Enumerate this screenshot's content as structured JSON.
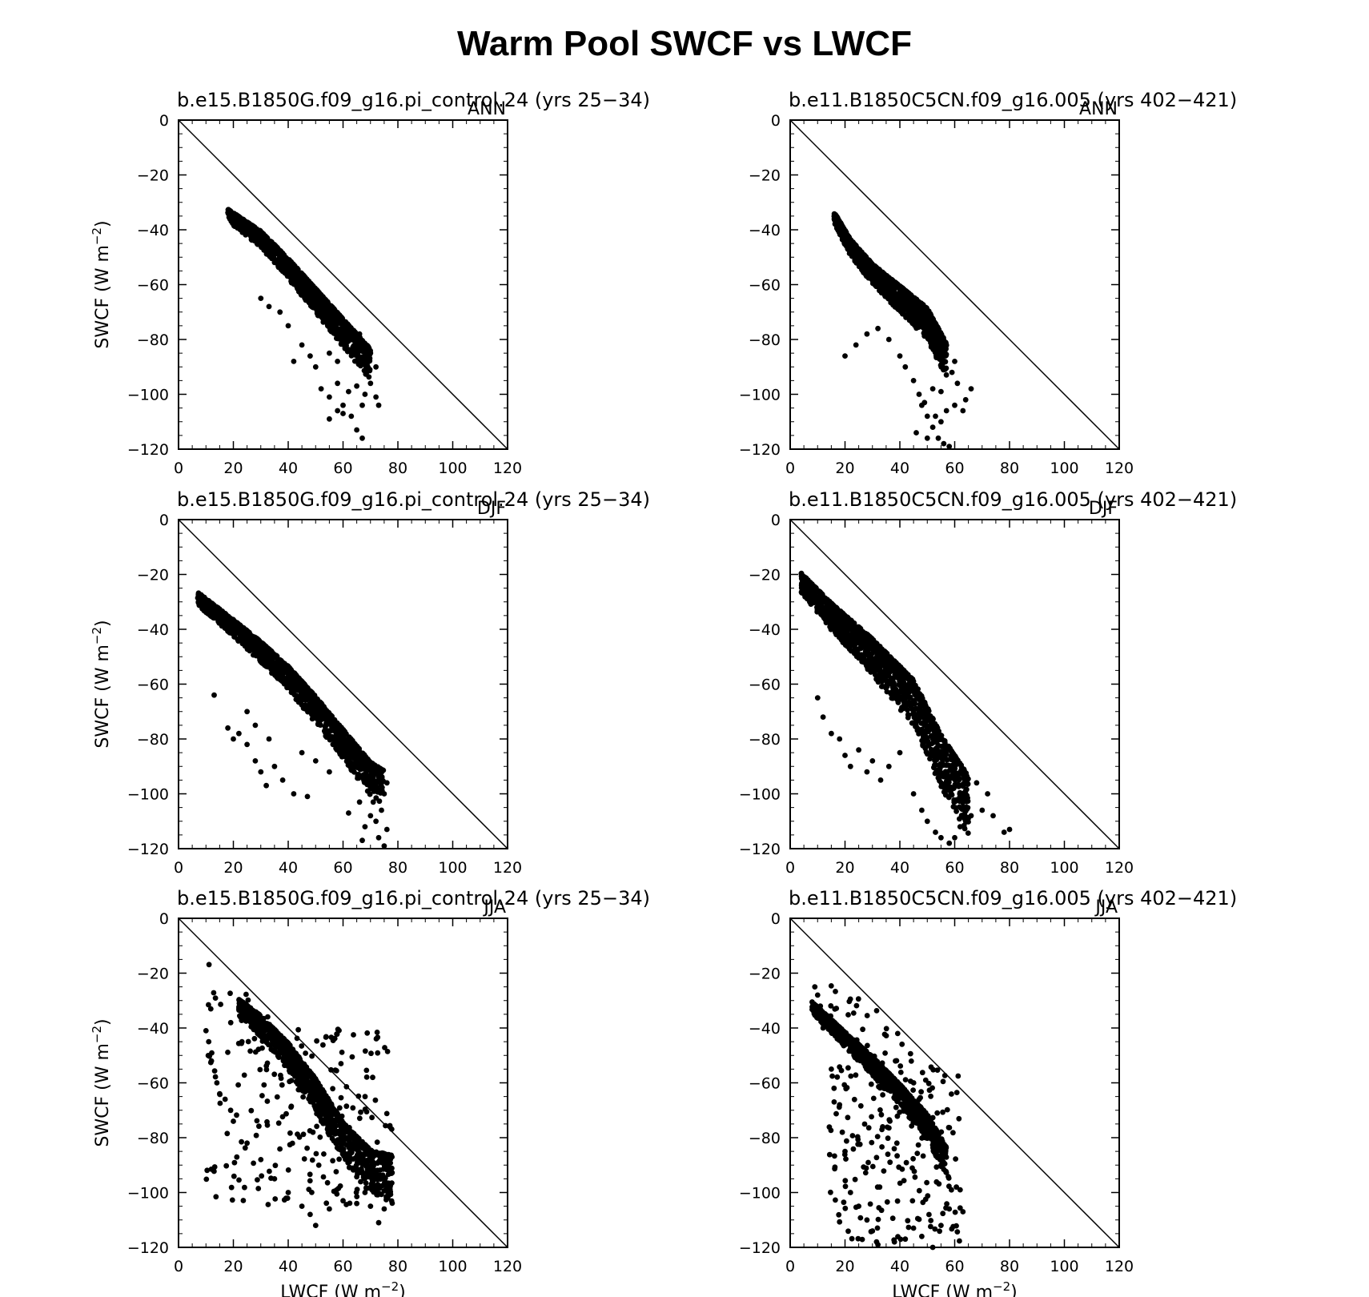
{
  "figure": {
    "title": "Warm Pool SWCF vs LWCF"
  },
  "axis_text": {
    "ylabel_main": "SWCF (W m",
    "xlabel_main": "LWCF (W m",
    "unit_exponent": "−2"
  },
  "chart_data": [
    {
      "type": "scatter",
      "case": "b.e15.B1850G.f09_g16.pi_control.24 (yrs 25−34)",
      "season": "ANN",
      "xlim": [
        0,
        120
      ],
      "ylim": [
        -120,
        0
      ],
      "xticks": [
        0,
        20,
        40,
        60,
        80,
        100,
        120
      ],
      "yticks": [
        0,
        -20,
        -40,
        -60,
        -80,
        -100,
        -120
      ],
      "xlabel": "",
      "ylabel": "SWCF (W m⁻²)",
      "reference_line": "y = -x",
      "cloud": {
        "trend": [
          [
            18,
            -34
          ],
          [
            30,
            -42
          ],
          [
            40,
            -52
          ],
          [
            50,
            -63
          ],
          [
            60,
            -74
          ],
          [
            70,
            -85
          ]
        ],
        "spread_lower": 8,
        "spread_upper": 1.5,
        "n": 1200
      },
      "points": [
        [
          52,
          -98
        ],
        [
          55,
          -101
        ],
        [
          58,
          -96
        ],
        [
          60,
          -104
        ],
        [
          62,
          -99
        ],
        [
          65,
          -97
        ],
        [
          67,
          -104
        ],
        [
          68,
          -100
        ],
        [
          70,
          -96
        ],
        [
          72,
          -101
        ],
        [
          73,
          -104
        ],
        [
          55,
          -109
        ],
        [
          58,
          -106
        ],
        [
          60,
          -107
        ],
        [
          63,
          -108
        ],
        [
          65,
          -113
        ],
        [
          67,
          -116
        ],
        [
          30,
          -65
        ],
        [
          33,
          -68
        ],
        [
          37,
          -70
        ],
        [
          40,
          -75
        ],
        [
          45,
          -82
        ],
        [
          42,
          -88
        ],
        [
          48,
          -86
        ],
        [
          50,
          -90
        ],
        [
          55,
          -85
        ],
        [
          58,
          -88
        ],
        [
          62,
          -80
        ],
        [
          66,
          -78
        ],
        [
          70,
          -85
        ],
        [
          72,
          -90
        ]
      ]
    },
    {
      "type": "scatter",
      "case": "b.e11.B1850C5CN.f09_g16.005 (yrs 402−421)",
      "season": "ANN",
      "xlim": [
        0,
        120
      ],
      "ylim": [
        -120,
        0
      ],
      "xticks": [
        0,
        20,
        40,
        60,
        80,
        100,
        120
      ],
      "yticks": [
        0,
        -20,
        -40,
        -60,
        -80,
        -100,
        -120
      ],
      "xlabel": "",
      "ylabel": "",
      "reference_line": "y = -x",
      "cloud": {
        "trend": [
          [
            16,
            -35
          ],
          [
            22,
            -45
          ],
          [
            30,
            -54
          ],
          [
            40,
            -62
          ],
          [
            50,
            -70
          ],
          [
            57,
            -83
          ]
        ],
        "spread_lower": 9,
        "spread_upper": 1.5,
        "n": 1200
      },
      "points": [
        [
          20,
          -86
        ],
        [
          24,
          -82
        ],
        [
          28,
          -78
        ],
        [
          32,
          -76
        ],
        [
          36,
          -80
        ],
        [
          40,
          -86
        ],
        [
          42,
          -90
        ],
        [
          45,
          -95
        ],
        [
          47,
          -100
        ],
        [
          48,
          -104
        ],
        [
          50,
          -108
        ],
        [
          52,
          -112
        ],
        [
          54,
          -116
        ],
        [
          56,
          -118
        ],
        [
          58,
          -119
        ],
        [
          55,
          -110
        ],
        [
          57,
          -106
        ],
        [
          60,
          -104
        ],
        [
          63,
          -106
        ],
        [
          66,
          -98
        ],
        [
          64,
          -102
        ],
        [
          61,
          -96
        ],
        [
          59,
          -92
        ],
        [
          52,
          -98
        ],
        [
          46,
          -114
        ],
        [
          50,
          -116
        ],
        [
          53,
          -108
        ],
        [
          49,
          -103
        ],
        [
          55,
          -99
        ],
        [
          60,
          -88
        ]
      ]
    },
    {
      "type": "scatter",
      "case": "b.e15.B1850G.f09_g16.pi_control.24 (yrs 25−34)",
      "season": "DJF",
      "xlim": [
        0,
        120
      ],
      "ylim": [
        -120,
        0
      ],
      "xticks": [
        0,
        20,
        40,
        60,
        80,
        100,
        120
      ],
      "yticks": [
        0,
        -20,
        -40,
        -60,
        -80,
        -100,
        -120
      ],
      "xlabel": "",
      "ylabel": "SWCF (W m⁻²)",
      "reference_line": "y = -x",
      "cloud": {
        "trend": [
          [
            7,
            -28
          ],
          [
            20,
            -38
          ],
          [
            30,
            -46
          ],
          [
            40,
            -55
          ],
          [
            50,
            -66
          ],
          [
            60,
            -78
          ],
          [
            70,
            -90
          ],
          [
            75,
            -93
          ]
        ],
        "spread_lower": 9,
        "spread_upper": 1.5,
        "n": 1300
      },
      "points": [
        [
          13,
          -64
        ],
        [
          18,
          -76
        ],
        [
          20,
          -80
        ],
        [
          22,
          -78
        ],
        [
          25,
          -82
        ],
        [
          28,
          -88
        ],
        [
          30,
          -92
        ],
        [
          32,
          -97
        ],
        [
          35,
          -90
        ],
        [
          38,
          -95
        ],
        [
          42,
          -100
        ],
        [
          47,
          -101
        ],
        [
          62,
          -107
        ],
        [
          66,
          -103
        ],
        [
          68,
          -112
        ],
        [
          70,
          -108
        ],
        [
          72,
          -110
        ],
        [
          74,
          -106
        ],
        [
          73,
          -116
        ],
        [
          75,
          -119
        ],
        [
          76,
          -113
        ],
        [
          67,
          -117
        ],
        [
          71,
          -103
        ],
        [
          75,
          -100
        ],
        [
          76,
          -96
        ],
        [
          25,
          -70
        ],
        [
          28,
          -75
        ],
        [
          33,
          -80
        ],
        [
          45,
          -85
        ],
        [
          50,
          -88
        ],
        [
          55,
          -92
        ]
      ]
    },
    {
      "type": "scatter",
      "case": "b.e11.B1850C5CN.f09_g16.005 (yrs 402−421)",
      "season": "DJF",
      "xlim": [
        0,
        120
      ],
      "ylim": [
        -120,
        0
      ],
      "xticks": [
        0,
        20,
        40,
        60,
        80,
        100,
        120
      ],
      "yticks": [
        0,
        -20,
        -40,
        -60,
        -80,
        -100,
        -120
      ],
      "xlabel": "",
      "ylabel": "",
      "reference_line": "y = -x",
      "cloud": {
        "trend": [
          [
            4,
            -21
          ],
          [
            15,
            -32
          ],
          [
            30,
            -45
          ],
          [
            45,
            -60
          ],
          [
            55,
            -80
          ],
          [
            65,
            -95
          ]
        ],
        "spread_lower": 16,
        "spread_upper": 1.5,
        "n": 1400
      },
      "points": [
        [
          10,
          -65
        ],
        [
          12,
          -72
        ],
        [
          15,
          -78
        ],
        [
          18,
          -80
        ],
        [
          20,
          -86
        ],
        [
          22,
          -90
        ],
        [
          25,
          -84
        ],
        [
          28,
          -92
        ],
        [
          30,
          -88
        ],
        [
          33,
          -95
        ],
        [
          36,
          -90
        ],
        [
          40,
          -85
        ],
        [
          45,
          -100
        ],
        [
          48,
          -106
        ],
        [
          50,
          -110
        ],
        [
          53,
          -114
        ],
        [
          55,
          -116
        ],
        [
          58,
          -118
        ],
        [
          60,
          -116
        ],
        [
          62,
          -112
        ],
        [
          66,
          -108
        ],
        [
          70,
          -106
        ],
        [
          74,
          -108
        ],
        [
          78,
          -114
        ],
        [
          80,
          -113
        ],
        [
          72,
          -100
        ],
        [
          68,
          -96
        ]
      ]
    },
    {
      "type": "scatter",
      "case": "b.e15.B1850G.f09_g16.pi_control.24 (yrs 25−34)",
      "season": "JJA",
      "xlim": [
        0,
        120
      ],
      "ylim": [
        -120,
        0
      ],
      "xticks": [
        0,
        20,
        40,
        60,
        80,
        100,
        120
      ],
      "yticks": [
        0,
        -20,
        -40,
        -60,
        -80,
        -100,
        -120
      ],
      "xlabel": "LWCF (W m⁻²)",
      "ylabel": "SWCF (W m⁻²)",
      "reference_line": "y = -x",
      "cloud": {
        "trend": [
          [
            22,
            -31
          ],
          [
            30,
            -37
          ],
          [
            40,
            -47
          ],
          [
            50,
            -60
          ],
          [
            60,
            -76
          ],
          [
            70,
            -86
          ],
          [
            78,
            -88
          ]
        ],
        "spread_lower": 13,
        "spread_upper": 1.5,
        "n": 1100
      },
      "scatter_box": {
        "x": [
          10,
          78
        ],
        "y": [
          -40,
          -105
        ],
        "n": 220
      },
      "points": [
        [
          10,
          -41
        ],
        [
          11,
          -45
        ],
        [
          12,
          -52
        ],
        [
          14,
          -60
        ],
        [
          15,
          -64
        ],
        [
          17,
          -66
        ],
        [
          19,
          -70
        ],
        [
          20,
          -74
        ],
        [
          25,
          -82
        ],
        [
          30,
          -88
        ],
        [
          35,
          -95
        ],
        [
          40,
          -100
        ],
        [
          45,
          -105
        ],
        [
          48,
          -108
        ],
        [
          50,
          -112
        ],
        [
          55,
          -106
        ],
        [
          60,
          -103
        ],
        [
          65,
          -104
        ],
        [
          68,
          -100
        ],
        [
          70,
          -105
        ],
        [
          73,
          -111
        ],
        [
          75,
          -106
        ]
      ]
    },
    {
      "type": "scatter",
      "case": "b.e11.B1850C5CN.f09_g16.005 (yrs 402−421)",
      "season": "JJA",
      "xlim": [
        0,
        120
      ],
      "ylim": [
        -120,
        0
      ],
      "xticks": [
        0,
        20,
        40,
        60,
        80,
        100,
        120
      ],
      "yticks": [
        0,
        -20,
        -40,
        -60,
        -80,
        -100,
        -120
      ],
      "xlabel": "LWCF (W m⁻²)",
      "ylabel": "",
      "reference_line": "y = -x",
      "cloud": {
        "trend": [
          [
            8,
            -32
          ],
          [
            20,
            -43
          ],
          [
            30,
            -52
          ],
          [
            40,
            -62
          ],
          [
            50,
            -73
          ],
          [
            57,
            -85
          ]
        ],
        "spread_lower": 7,
        "spread_upper": 1.5,
        "n": 1000
      },
      "scatter_box": {
        "x": [
          14,
          62
        ],
        "y": [
          -55,
          -118
        ],
        "n": 230
      },
      "points": [
        [
          9,
          -25
        ],
        [
          10,
          -28
        ],
        [
          11,
          -32
        ],
        [
          10,
          -36
        ],
        [
          12,
          -40
        ],
        [
          15,
          -55
        ],
        [
          16,
          -62
        ],
        [
          18,
          -68
        ],
        [
          19,
          -78
        ],
        [
          20,
          -85
        ],
        [
          22,
          -100
        ],
        [
          25,
          -105
        ],
        [
          28,
          -110
        ],
        [
          30,
          -114
        ],
        [
          32,
          -119
        ],
        [
          38,
          -118
        ],
        [
          42,
          -117
        ],
        [
          45,
          -113
        ],
        [
          48,
          -116
        ],
        [
          52,
          -120
        ],
        [
          55,
          -112
        ],
        [
          58,
          -106
        ],
        [
          62,
          -99
        ],
        [
          63,
          -107
        ]
      ]
    }
  ]
}
